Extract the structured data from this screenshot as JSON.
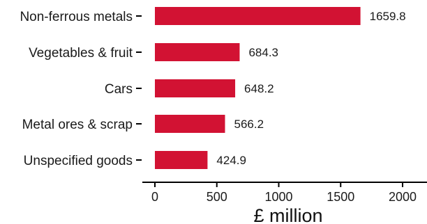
{
  "chart_data": {
    "type": "bar",
    "orientation": "horizontal",
    "categories": [
      "Non-ferrous metals",
      "Vegetables & fruit",
      "Cars",
      "Metal ores & scrap",
      "Unspecified goods"
    ],
    "values": [
      1659.8,
      684.3,
      648.2,
      566.2,
      424.9
    ],
    "value_labels": [
      "1659.8",
      "684.3",
      "648.2",
      "566.2",
      "424.9"
    ],
    "xlabel": "£ million",
    "ylabel": "",
    "title": "",
    "xlim": [
      0,
      2200
    ],
    "xticks": [
      0,
      500,
      1000,
      1500,
      2000
    ],
    "grid": false,
    "bar_color": "#d21233"
  }
}
